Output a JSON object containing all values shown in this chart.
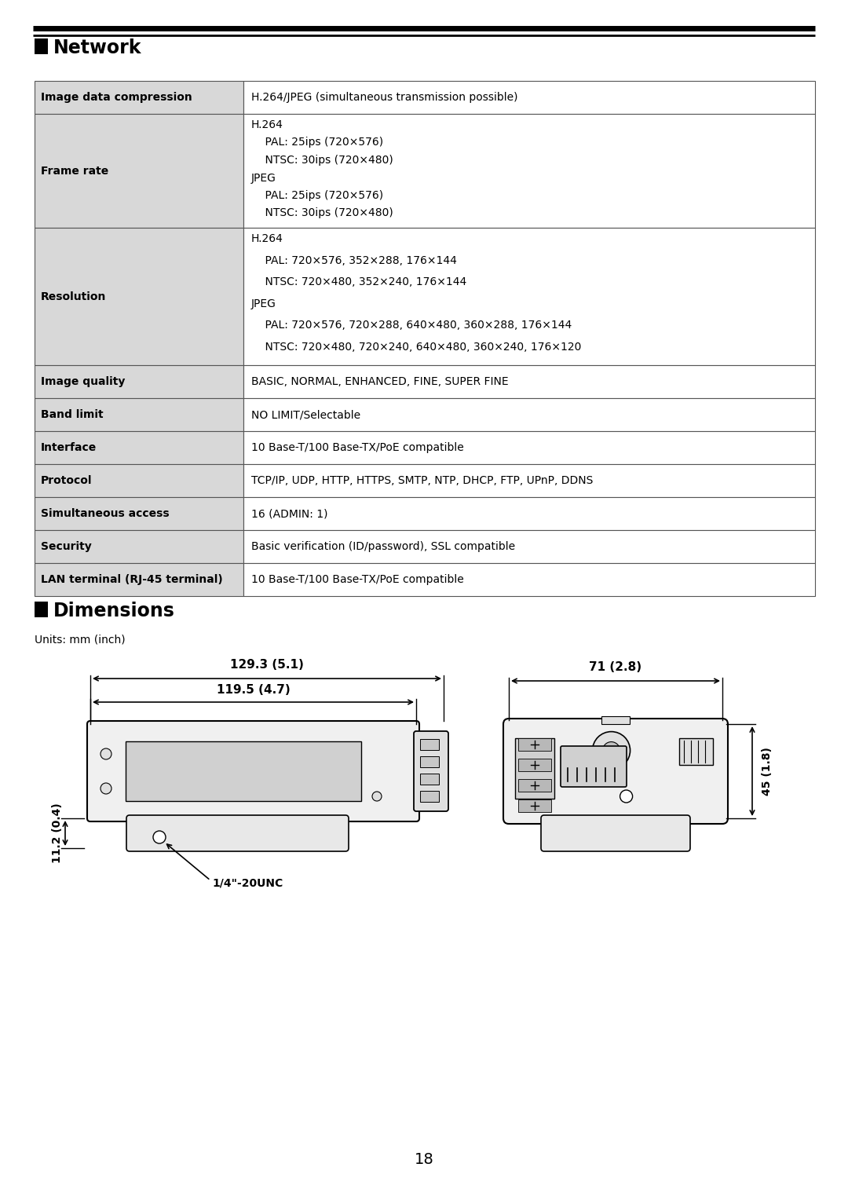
{
  "page_bg": "#ffffff",
  "page_number": "18",
  "section_network": "Network",
  "section_dimensions": "Dimensions",
  "units_label": "Units: mm (inch)",
  "table_row_bg": "#d8d8d8",
  "table_border_color": "#555555",
  "table_rows": [
    {
      "label": "Image data compression",
      "value": "H.264/JPEG (simultaneous transmission possible)",
      "multiline": false
    },
    {
      "label": "Frame rate",
      "value": "H.264\n    PAL: 25ips (720×576)\n    NTSC: 30ips (720×480)\nJPEG\n    PAL: 25ips (720×576)\n    NTSC: 30ips (720×480)",
      "multiline": true
    },
    {
      "label": "Resolution",
      "value": "H.264\n    PAL: 720×576, 352×288, 176×144\n    NTSC: 720×480, 352×240, 176×144\nJPEG\n    PAL: 720×576, 720×288, 640×480, 360×288, 176×144\n    NTSC: 720×480, 720×240, 640×480, 360×240, 176×120",
      "multiline": true
    },
    {
      "label": "Image quality",
      "value": "BASIC, NORMAL, ENHANCED, FINE, SUPER FINE",
      "multiline": false
    },
    {
      "label": "Band limit",
      "value": "NO LIMIT/Selectable",
      "multiline": false
    },
    {
      "label": "Interface",
      "value": "10 Base-T/100 Base-TX/PoE compatible",
      "multiline": false
    },
    {
      "label": "Protocol",
      "value": "TCP/IP, UDP, HTTP, HTTPS, SMTP, NTP, DHCP, FTP, UPnP, DDNS",
      "multiline": false
    },
    {
      "label": "Simultaneous access",
      "value": "16 (ADMIN: 1)",
      "multiline": false
    },
    {
      "label": "Security",
      "value": "Basic verification (ID/password), SSL compatible",
      "multiline": false
    },
    {
      "label": "LAN terminal (RJ-45 terminal)",
      "value": "10 Base-T/100 Base-TX/PoE compatible",
      "multiline": false
    }
  ],
  "dim_129": "129.3 (5.1)",
  "dim_119": "119.5 (4.7)",
  "dim_71": "71 (2.8)",
  "dim_45": "45 (1.8)",
  "dim_11": "11.2 (0.4)",
  "dim_unc": "1/4\"-20UNC"
}
